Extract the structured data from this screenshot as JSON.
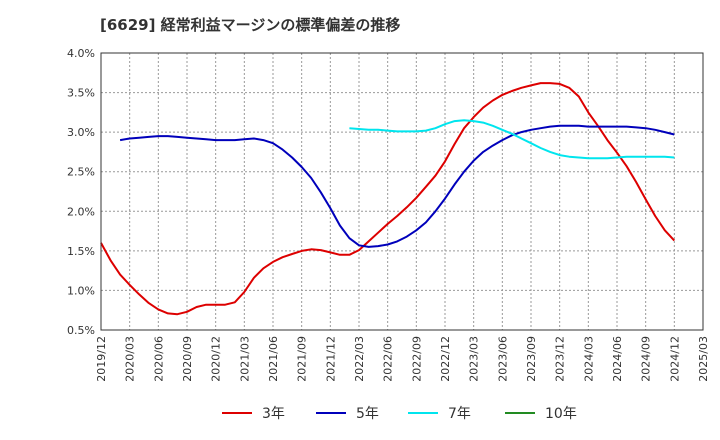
{
  "chart_data": {
    "type": "line",
    "title": "[6629]  経常利益マージンの標準偏差の推移",
    "xlabel": "",
    "ylabel": "",
    "ylim": [
      0.5,
      4.0
    ],
    "y_ticks": [
      "0.5%",
      "1.0%",
      "1.5%",
      "2.0%",
      "2.5%",
      "3.0%",
      "3.5%",
      "4.0%"
    ],
    "y_tick_values": [
      0.5,
      1.0,
      1.5,
      2.0,
      2.5,
      3.0,
      3.5,
      4.0
    ],
    "x_ticks": [
      "2019/12",
      "2020/03",
      "2020/06",
      "2020/09",
      "2020/12",
      "2021/03",
      "2021/06",
      "2021/09",
      "2021/12",
      "2022/03",
      "2022/06",
      "2022/09",
      "2022/12",
      "2023/03",
      "2023/06",
      "2023/09",
      "2023/12",
      "2024/03",
      "2024/06",
      "2024/09",
      "2024/12",
      "2025/03"
    ],
    "grid": true,
    "legend_position": "bottom",
    "x_months_note": "x values are month offsets from 2019/12",
    "series": [
      {
        "name": "3年",
        "color": "#dd0000",
        "x": [
          0,
          1,
          2,
          3,
          4,
          5,
          6,
          7,
          8,
          9,
          10,
          11,
          12,
          13,
          14,
          15,
          16,
          17,
          18,
          19,
          20,
          21,
          22,
          23,
          24,
          25,
          26,
          27,
          28,
          29,
          30,
          31,
          32,
          33,
          34,
          35,
          36,
          37,
          38,
          39,
          40,
          41,
          42,
          43,
          44,
          45,
          46,
          47,
          48,
          49,
          50,
          51,
          52,
          53,
          54,
          55,
          56,
          57,
          58,
          59,
          60
        ],
        "values": [
          1.6,
          1.38,
          1.2,
          1.07,
          0.95,
          0.84,
          0.76,
          0.71,
          0.7,
          0.73,
          0.79,
          0.82,
          0.82,
          0.82,
          0.85,
          0.98,
          1.16,
          1.28,
          1.36,
          1.42,
          1.46,
          1.5,
          1.52,
          1.51,
          1.48,
          1.45,
          1.45,
          1.51,
          1.62,
          1.73,
          1.84,
          1.94,
          2.05,
          2.17,
          2.31,
          2.45,
          2.63,
          2.85,
          3.05,
          3.19,
          3.31,
          3.4,
          3.47,
          3.52,
          3.56,
          3.59,
          3.62,
          3.62,
          3.61,
          3.56,
          3.45,
          3.25,
          3.08,
          2.9,
          2.74,
          2.57,
          2.37,
          2.15,
          1.94,
          1.76,
          1.63
        ]
      },
      {
        "name": "5年",
        "color": "#0000bb",
        "x": [
          2,
          3,
          4,
          5,
          6,
          7,
          8,
          9,
          10,
          11,
          12,
          13,
          14,
          15,
          16,
          17,
          18,
          19,
          20,
          21,
          22,
          23,
          24,
          25,
          26,
          27,
          28,
          29,
          30,
          31,
          32,
          33,
          34,
          35,
          36,
          37,
          38,
          39,
          40,
          41,
          42,
          43,
          44,
          45,
          46,
          47,
          48,
          49,
          50,
          51,
          52,
          53,
          54,
          55,
          56,
          57,
          58,
          59,
          60
        ],
        "values": [
          2.9,
          2.92,
          2.93,
          2.94,
          2.95,
          2.95,
          2.94,
          2.93,
          2.92,
          2.91,
          2.9,
          2.9,
          2.9,
          2.91,
          2.92,
          2.9,
          2.86,
          2.78,
          2.68,
          2.56,
          2.42,
          2.24,
          2.04,
          1.82,
          1.66,
          1.57,
          1.55,
          1.56,
          1.58,
          1.62,
          1.68,
          1.76,
          1.86,
          2.0,
          2.16,
          2.34,
          2.5,
          2.64,
          2.75,
          2.83,
          2.9,
          2.96,
          3.0,
          3.03,
          3.05,
          3.07,
          3.08,
          3.08,
          3.08,
          3.07,
          3.07,
          3.07,
          3.07,
          3.07,
          3.06,
          3.05,
          3.03,
          3.0,
          2.97
        ]
      },
      {
        "name": "7年",
        "color": "#00e5ee",
        "x": [
          26,
          27,
          28,
          29,
          30,
          31,
          32,
          33,
          34,
          35,
          36,
          37,
          38,
          39,
          40,
          41,
          42,
          43,
          44,
          45,
          46,
          47,
          48,
          49,
          50,
          51,
          52,
          53,
          54,
          55,
          56,
          57,
          58,
          59,
          60
        ],
        "values": [
          3.05,
          3.04,
          3.03,
          3.03,
          3.02,
          3.01,
          3.01,
          3.01,
          3.02,
          3.05,
          3.1,
          3.14,
          3.15,
          3.14,
          3.12,
          3.08,
          3.03,
          2.98,
          2.92,
          2.86,
          2.8,
          2.75,
          2.71,
          2.69,
          2.68,
          2.67,
          2.67,
          2.67,
          2.68,
          2.69,
          2.69,
          2.69,
          2.69,
          2.69,
          2.68
        ]
      },
      {
        "name": "10年",
        "color": "#228b22",
        "x": [],
        "values": []
      }
    ]
  }
}
